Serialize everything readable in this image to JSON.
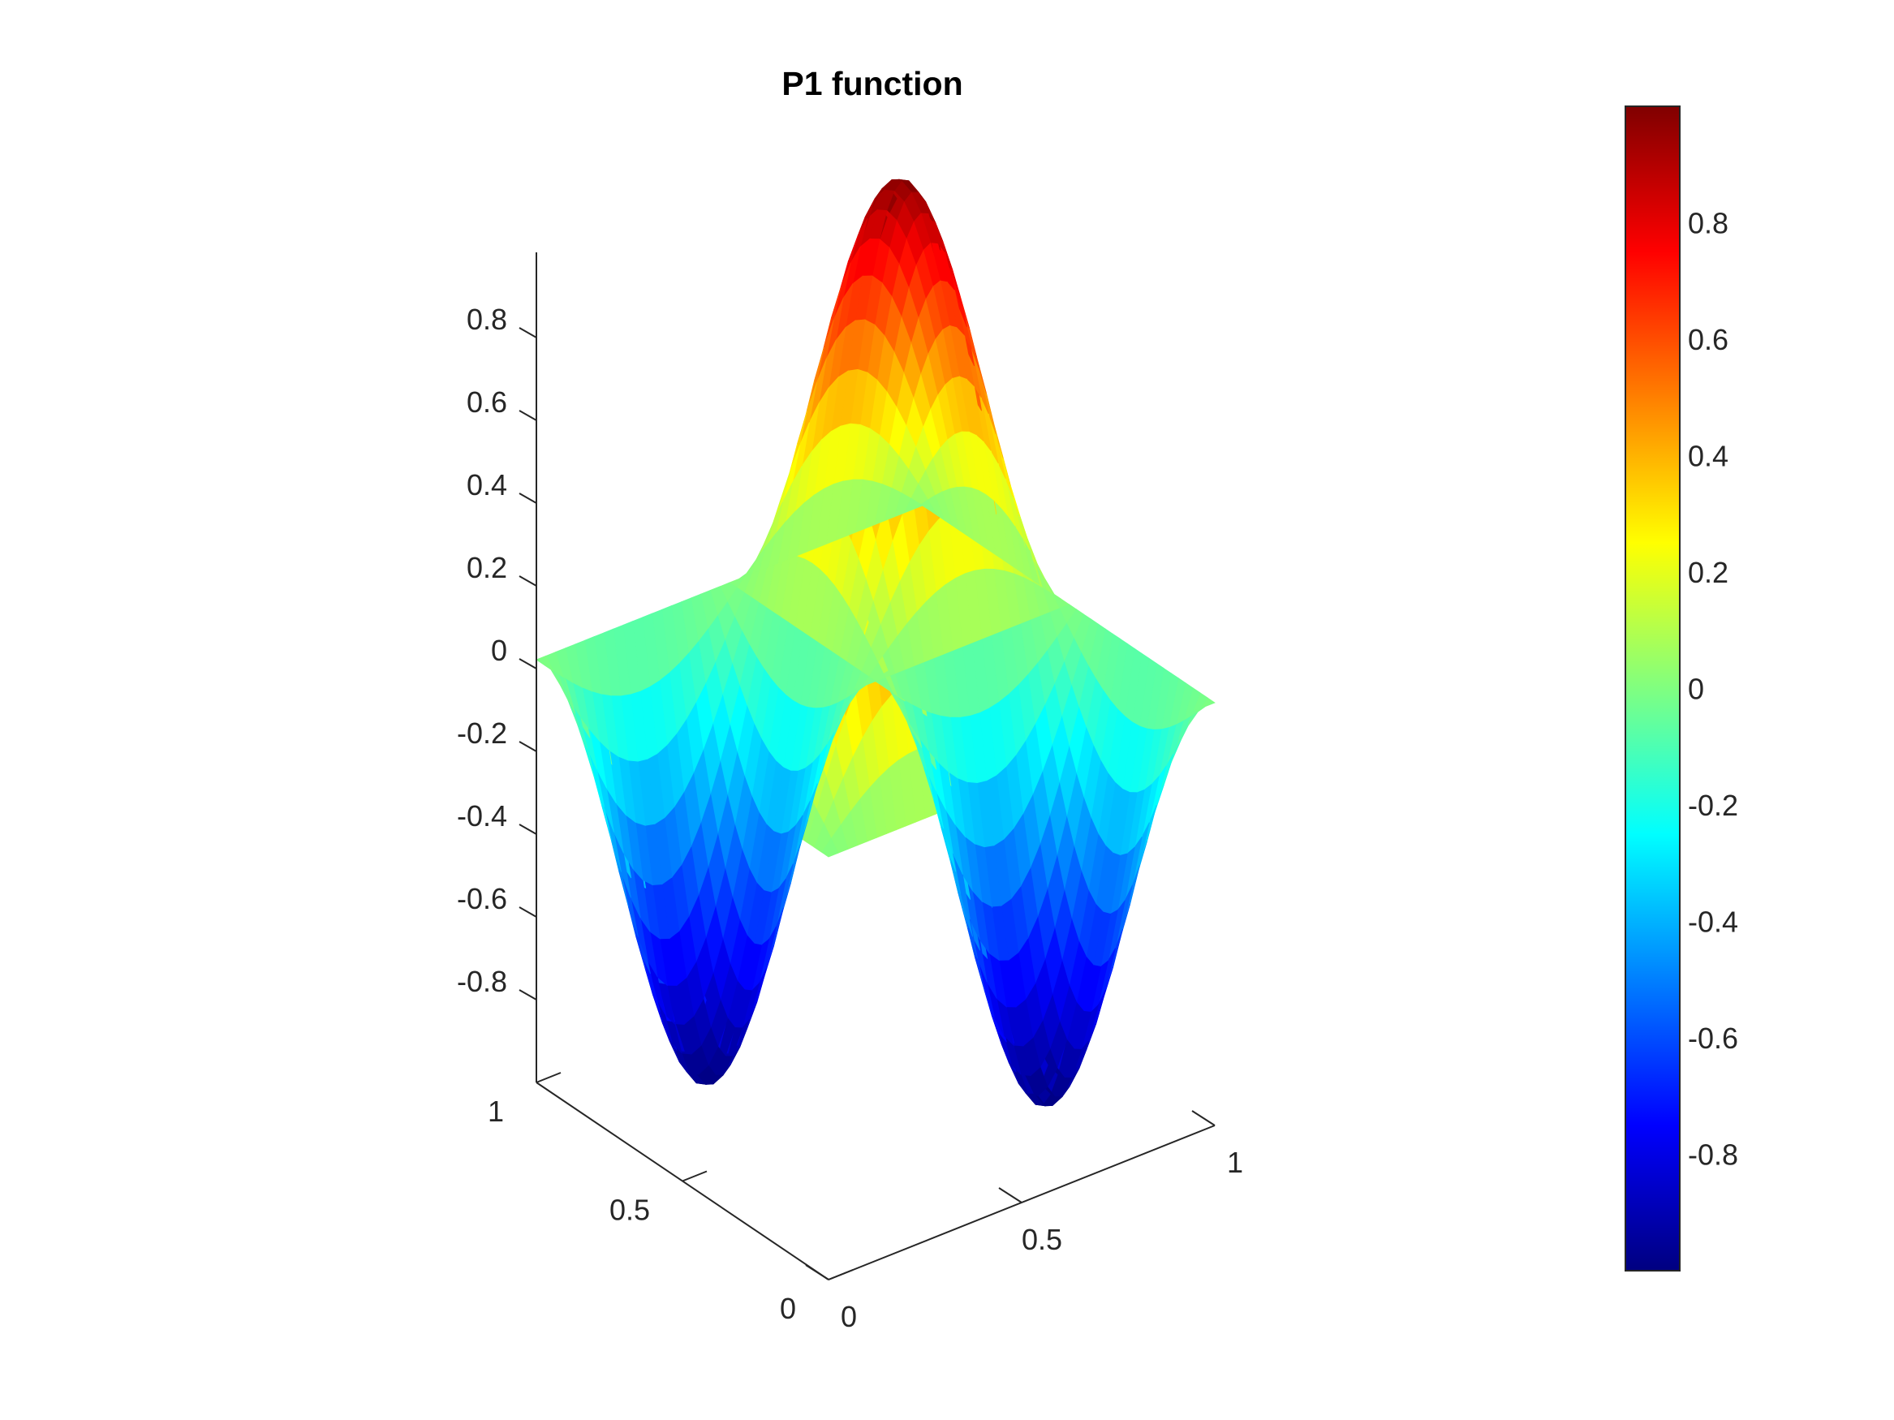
{
  "chart_data": {
    "type": "surface",
    "title": "P1 function",
    "xlabel": "",
    "ylabel": "",
    "zlabel": "",
    "colormap": "jet",
    "function": "sin(2*pi*x)*sin(2*pi*y)",
    "xlim": [
      0,
      1
    ],
    "ylim": [
      0,
      1
    ],
    "zlim": [
      -1,
      1
    ],
    "clim": [
      -1,
      1
    ],
    "grid": false,
    "x_ticks": [
      "0",
      "0.5",
      "1"
    ],
    "y_ticks": [
      "0",
      "0.5",
      "1"
    ],
    "z_ticks": [
      "-0.8",
      "-0.6",
      "-0.4",
      "-0.2",
      "0",
      "0.2",
      "0.4",
      "0.6",
      "0.8"
    ],
    "colorbar_ticks": [
      "-0.8",
      "-0.6",
      "-0.4",
      "-0.2",
      "0",
      "0.2",
      "0.4",
      "0.6",
      "0.8"
    ],
    "peaks": [
      {
        "x": 0.25,
        "y": 0.25,
        "z": 1
      },
      {
        "x": 0.75,
        "y": 0.75,
        "z": 1
      },
      {
        "x": 0.25,
        "y": 0.75,
        "z": -1
      },
      {
        "x": 0.75,
        "y": 0.25,
        "z": -1
      }
    ]
  }
}
